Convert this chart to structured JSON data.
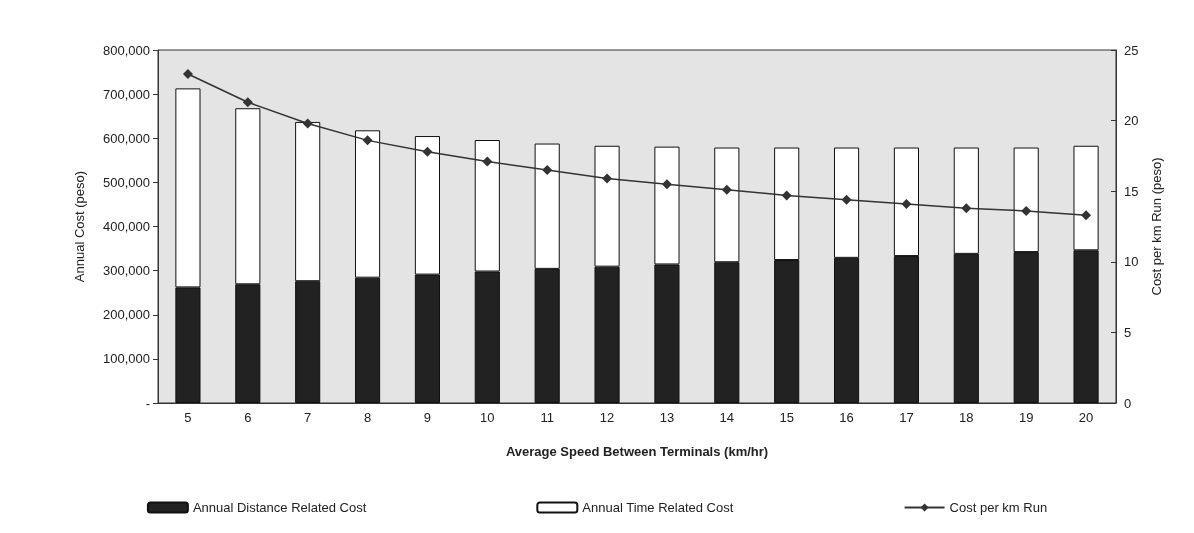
{
  "chart_data": {
    "type": "bar",
    "stacked": true,
    "xlabel": "Average Speed Between Terminals (km/hr)",
    "ylabel": "Annual Cost (peso)",
    "y2label": "Cost per km Run (peso)",
    "categories": [
      "5",
      "6",
      "7",
      "8",
      "9",
      "10",
      "11",
      "12",
      "13",
      "14",
      "15",
      "16",
      "17",
      "18",
      "19",
      "20"
    ],
    "series": [
      {
        "name": "Annual Distance Related Cost",
        "color": "#222222",
        "values": [
          262000,
          269000,
          276000,
          284000,
          291000,
          298000,
          304000,
          309000,
          314000,
          319000,
          324000,
          329000,
          333000,
          338000,
          342000,
          346000
        ]
      },
      {
        "name": "Annual Time Related Cost",
        "color": "#ffffff",
        "values": [
          451000,
          399000,
          361000,
          334000,
          314000,
          298000,
          284000,
          274000,
          267000,
          260000,
          255000,
          250000,
          246000,
          241000,
          237000,
          237000
        ]
      },
      {
        "name": "Cost per km Run",
        "type": "line",
        "axis": "y2",
        "color": "#333333",
        "marker": "diamond",
        "values": [
          23.3,
          21.3,
          19.8,
          18.6,
          17.8,
          17.1,
          16.5,
          15.9,
          15.5,
          15.1,
          14.7,
          14.4,
          14.1,
          13.8,
          13.6,
          13.3
        ]
      }
    ],
    "ylim": [
      0,
      800000
    ],
    "yticks": [
      {
        "value": 0,
        "label": "-"
      },
      {
        "value": 100000,
        "label": "100,000"
      },
      {
        "value": 200000,
        "label": "200,000"
      },
      {
        "value": 300000,
        "label": "300,000"
      },
      {
        "value": 400000,
        "label": "400,000"
      },
      {
        "value": 500000,
        "label": "500,000"
      },
      {
        "value": 600000,
        "label": "600,000"
      },
      {
        "value": 700000,
        "label": "700,000"
      },
      {
        "value": 800000,
        "label": "800,000"
      }
    ],
    "y2lim": [
      0,
      25
    ],
    "y2ticks": [
      0,
      5,
      10,
      15,
      20,
      25
    ],
    "grid": false,
    "legend": "bottom"
  }
}
